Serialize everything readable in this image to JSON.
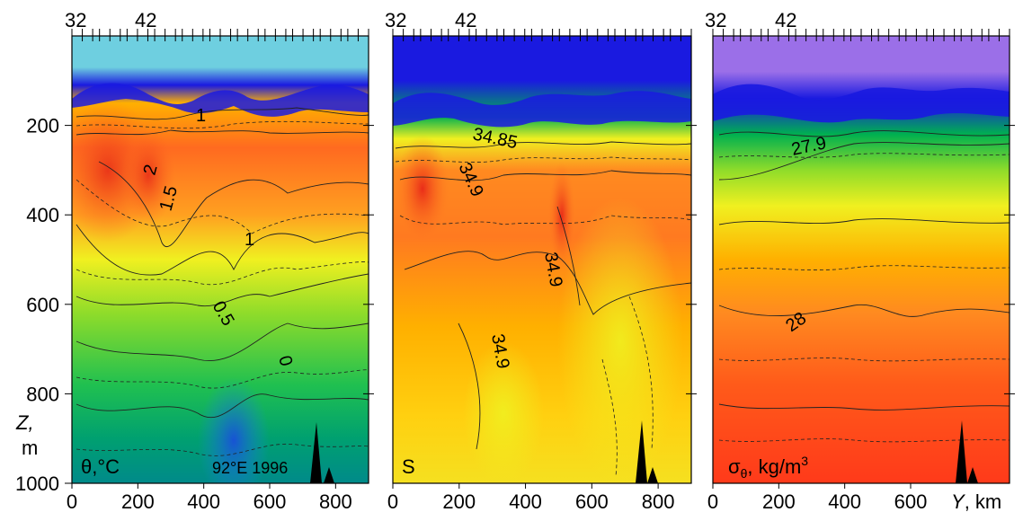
{
  "chart_data": [
    {
      "type": "heatmap",
      "panel_label": "θ,°C",
      "annotation": "92°E  1996",
      "xlim": [
        0,
        900
      ],
      "ylim": [
        1000,
        0
      ],
      "xticks": [
        0,
        200,
        400,
        600,
        800
      ],
      "yticks": [
        200,
        400,
        600,
        800,
        1000
      ],
      "top_station_labels": [
        "32",
        "42"
      ],
      "contour_labels": [
        "1",
        "2",
        "1.5",
        "1",
        "0.5",
        "0"
      ],
      "colors": [
        "#6ecfe0",
        "#1a1ae0",
        "#00b050",
        "#7fdc2a",
        "#f0f020",
        "#ffb000",
        "#ff5a1a",
        "#e83018"
      ]
    },
    {
      "type": "heatmap",
      "panel_label": "S",
      "xlim": [
        0,
        900
      ],
      "ylim": [
        1000,
        0
      ],
      "xticks": [
        0,
        200,
        400,
        600,
        800
      ],
      "top_station_labels": [
        "32",
        "42"
      ],
      "contour_labels": [
        "34.85",
        "34.9",
        "34.9",
        "34.9"
      ],
      "colors": [
        "#1a1ae0",
        "#00b050",
        "#f0f020",
        "#ffb000",
        "#ff5a1a",
        "#e83018"
      ]
    },
    {
      "type": "heatmap",
      "panel_label": "σθ, kg/m³",
      "xlabel": "Y, km",
      "xlim": [
        0,
        900
      ],
      "ylim": [
        1000,
        0
      ],
      "xticks": [
        0,
        200,
        400,
        600
      ],
      "top_station_labels": [
        "32",
        "42"
      ],
      "contour_labels": [
        "27.9",
        "28"
      ],
      "colors": [
        "#9b6fe8",
        "#1a1ae0",
        "#00b050",
        "#f0f020",
        "#ffb000",
        "#ff5a1a",
        "#ff3a1a"
      ]
    }
  ],
  "axis": {
    "ylabel_z": "Z,",
    "ylabel_m": "m",
    "xlabel_y": "Y",
    "xlabel_km": ", km"
  },
  "sigma_label": {
    "sigma": "σ",
    "theta_sub": "θ",
    "units": ", kg/m",
    "sup": "3"
  }
}
